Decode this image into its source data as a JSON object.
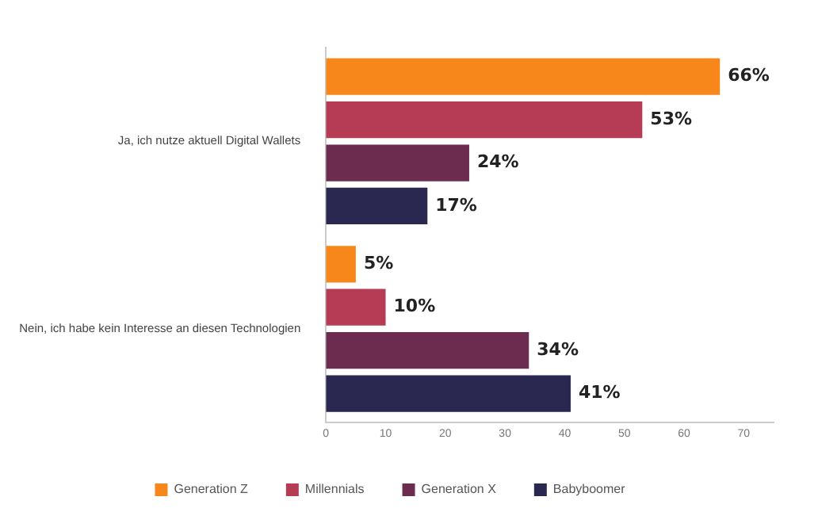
{
  "chart_data": {
    "type": "bar",
    "orientation": "horizontal",
    "categories": [
      "Ja, ich nutze aktuell Digital Wallets",
      "Nein, ich habe kein Interesse an diesen Technologien"
    ],
    "series": [
      {
        "name": "Generation Z",
        "color": "#f7871b",
        "values": [
          66,
          5
        ],
        "value_labels": [
          "66%",
          "5%"
        ]
      },
      {
        "name": "Millennials",
        "color": "#b63b55",
        "values": [
          53,
          10
        ],
        "value_labels": [
          "53%",
          "10%"
        ]
      },
      {
        "name": "Generation X",
        "color": "#6c2c4f",
        "values": [
          24,
          34
        ],
        "value_labels": [
          "24%",
          "34%"
        ]
      },
      {
        "name": "Babyboomer",
        "color": "#2a2850",
        "values": [
          17,
          41
        ],
        "value_labels": [
          "17%",
          "41%"
        ]
      }
    ],
    "xlim": [
      0,
      75
    ],
    "xticks": [
      0,
      10,
      20,
      30,
      40,
      50,
      60,
      70
    ],
    "grid": false,
    "legend": "bottom"
  }
}
